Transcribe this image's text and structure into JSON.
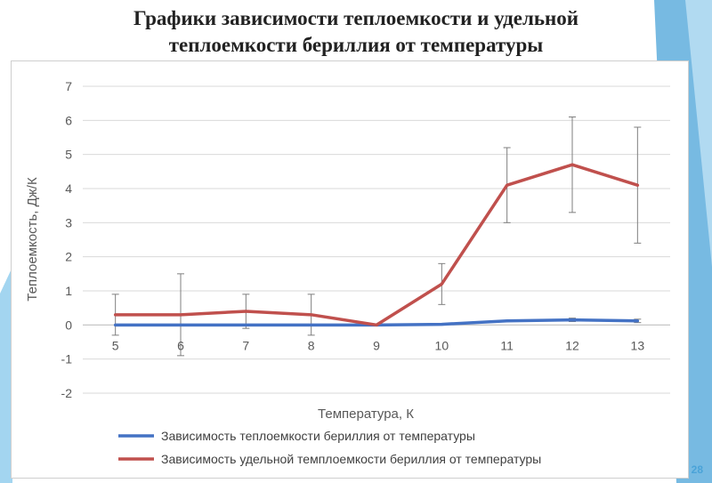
{
  "slide": {
    "title_line1": "Графики зависимости теплоемкости и удельной",
    "title_line2": "теплоемкости бериллия от температуры",
    "page_number": "28"
  },
  "colors": {
    "accent_blue": "#4aa3d8",
    "series_blue": "#4472c4",
    "series_red": "#c0504d"
  },
  "chart_data": {
    "type": "line",
    "title": "",
    "xlabel": "Температура, К",
    "ylabel": "Теплоемкость, Дж/К",
    "x": [
      5,
      6,
      7,
      8,
      9,
      10,
      11,
      12,
      13
    ],
    "ylim": [
      -2,
      7
    ],
    "yticks": [
      -2,
      -1,
      0,
      1,
      2,
      3,
      4,
      5,
      6,
      7
    ],
    "grid": true,
    "legend_position": "bottom",
    "series": [
      {
        "name": "Зависимость теплоемкости бериллия от температуры",
        "color": "#4472c4",
        "values": [
          0,
          0,
          0,
          0,
          0,
          0.02,
          0.12,
          0.15,
          0.12
        ],
        "error": [
          0,
          0,
          0,
          0,
          0,
          0,
          0,
          0.05,
          0.05
        ]
      },
      {
        "name": "Зависимость удельной темплоемкости бериллия от температуры",
        "color": "#c0504d",
        "values": [
          0.3,
          0.3,
          0.4,
          0.3,
          0,
          1.2,
          4.1,
          4.7,
          4.1
        ],
        "error": [
          0.6,
          1.2,
          0.5,
          0.6,
          0,
          0.6,
          1.1,
          1.4,
          1.7
        ]
      }
    ]
  }
}
